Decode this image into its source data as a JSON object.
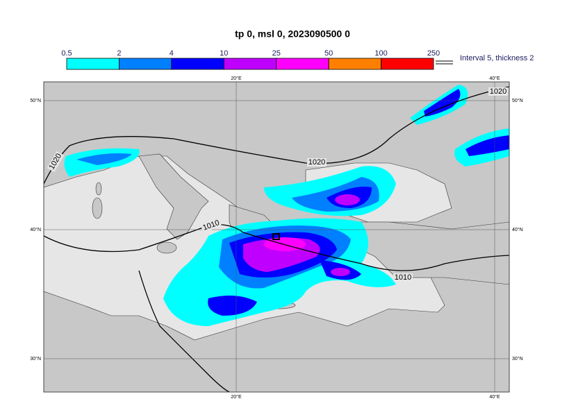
{
  "title": "tp 0, msl 0, 2023090500 0",
  "colorbar": {
    "levels": [
      0.5,
      2,
      4,
      10,
      25,
      50,
      100,
      250
    ],
    "colors": [
      "#00ffff",
      "#0080ff",
      "#0000ff",
      "#c000ff",
      "#ff00ff",
      "#ff8000",
      "#ff0000"
    ]
  },
  "contour_legend": "Interval 5, thickness 2",
  "grid": {
    "lon": [
      {
        "value": 20,
        "label": "20°E"
      },
      {
        "value": 40,
        "label": "40°E"
      }
    ],
    "lat": [
      {
        "value": 50,
        "label": "50°N"
      },
      {
        "value": 40,
        "label": "40°N"
      },
      {
        "value": 30,
        "label": "30°N"
      }
    ]
  },
  "isobar_labels": [
    1020,
    1020,
    1020,
    1010,
    1010
  ]
}
